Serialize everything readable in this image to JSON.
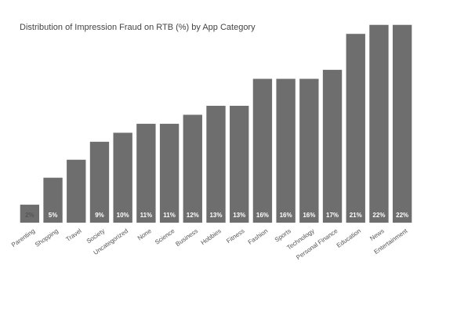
{
  "chart_data": {
    "type": "bar",
    "title": "Distribution of Impression Fraud on RTB (%) by App Category",
    "categories": [
      "Parenting",
      "Shopping",
      "Travel",
      "Society",
      "Uncategorized",
      "None",
      "Science",
      "Business",
      "Hobbies",
      "Fitness",
      "Fashion",
      "Sports",
      "Technology",
      "Personal Finance",
      "Education",
      "News",
      "Entertainment"
    ],
    "values": [
      2,
      5,
      7,
      9,
      10,
      11,
      11,
      12,
      13,
      13,
      16,
      16,
      16,
      17,
      21,
      22,
      22
    ],
    "value_labels": [
      "2%",
      "5%",
      null,
      "9%",
      "10%",
      "11%",
      "11%",
      "12%",
      "13%",
      "13%",
      "16%",
      "16%",
      "16%",
      "17%",
      "21%",
      "22%",
      "22%"
    ],
    "color": "#6e6e6e",
    "ylim": [
      0,
      22.5
    ]
  }
}
